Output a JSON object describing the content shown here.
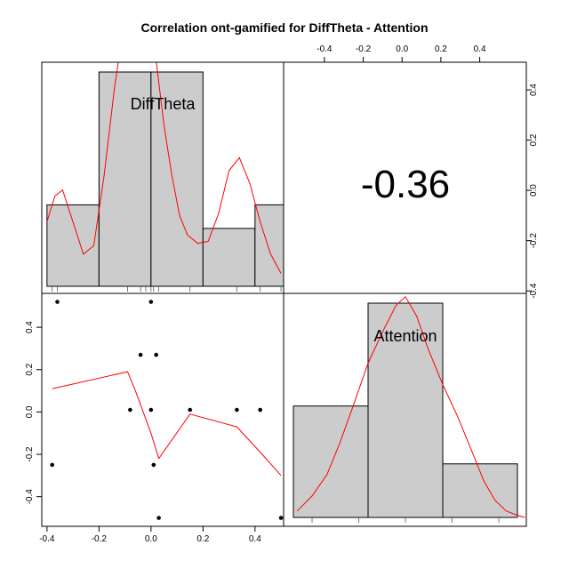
{
  "chart_data": {
    "type": "pairs",
    "title": "Correlation ont-gamified for DiffTheta - Attention",
    "variables": [
      "DiffTheta",
      "Attention"
    ],
    "colors": {
      "bar_fill": "#cccccc",
      "smooth_line": "#ff0000",
      "points": "#000000"
    },
    "diag_histograms": [
      {
        "variable": "DiffTheta",
        "label": "DiffTheta",
        "breaks": [
          -0.4,
          -0.2,
          0.0,
          0.2,
          0.4,
          0.6
        ],
        "densities": [
          0.38,
          1.0,
          1.0,
          0.27,
          0.38
        ],
        "rug": [
          -0.38,
          -0.36,
          -0.09,
          -0.04,
          -0.02,
          0.0,
          0.01,
          0.03,
          0.15,
          0.33,
          0.42,
          0.5
        ],
        "density_curve": {
          "x": [
            -0.4,
            -0.37,
            -0.34,
            -0.3,
            -0.26,
            -0.22,
            -0.18,
            -0.14,
            -0.1,
            -0.06,
            -0.03,
            -0.01,
            0.02,
            0.05,
            0.08,
            0.11,
            0.14,
            0.18,
            0.22,
            0.26,
            0.3,
            0.34,
            0.38,
            0.42,
            0.46,
            0.5
          ],
          "y": [
            0.3,
            0.42,
            0.45,
            0.3,
            0.15,
            0.19,
            0.52,
            0.93,
            1.25,
            1.35,
            1.34,
            1.25,
            1.05,
            0.75,
            0.52,
            0.33,
            0.24,
            0.2,
            0.21,
            0.34,
            0.54,
            0.6,
            0.48,
            0.3,
            0.15,
            0.06
          ]
        }
      },
      {
        "variable": "Attention",
        "label": "Attention",
        "breaks": [
          -0.6,
          -0.2,
          0.2,
          0.6
        ],
        "densities": [
          0.52,
          1.0,
          0.25
        ],
        "rug": [
          -0.5,
          -0.25,
          0.0,
          0.25,
          0.5
        ],
        "density_curve": {
          "x": [
            -0.58,
            -0.5,
            -0.42,
            -0.35,
            -0.28,
            -0.2,
            -0.12,
            -0.05,
            0.0,
            0.06,
            0.12,
            0.2,
            0.28,
            0.36,
            0.42,
            0.48,
            0.54,
            0.6,
            0.64
          ],
          "y": [
            0.03,
            0.1,
            0.2,
            0.35,
            0.52,
            0.72,
            0.87,
            0.99,
            1.03,
            0.94,
            0.79,
            0.62,
            0.47,
            0.3,
            0.17,
            0.08,
            0.03,
            0.01,
            0.0
          ]
        }
      }
    ],
    "upper_correlation": {
      "value": "-0.36"
    },
    "scatter": {
      "x_var": "DiffTheta",
      "y_var": "Attention",
      "x": [
        -0.36,
        -0.0,
        -0.04,
        0.02,
        -0.08,
        0.0,
        0.15,
        0.33,
        0.42,
        -0.38,
        0.01,
        0.03,
        0.5
      ],
      "y": [
        0.52,
        0.52,
        0.27,
        0.27,
        0.01,
        0.01,
        0.01,
        0.01,
        0.01,
        -0.25,
        -0.25,
        -0.5,
        -0.5
      ],
      "smooth": {
        "x": [
          -0.38,
          -0.09,
          -0.06,
          0.0,
          0.03,
          0.15,
          0.33,
          0.42,
          0.5
        ],
        "y": [
          0.11,
          0.19,
          0.1,
          -0.1,
          -0.22,
          -0.01,
          -0.07,
          -0.19,
          -0.3
        ]
      }
    },
    "axes": {
      "bottom": {
        "ticks": [
          -0.4,
          -0.2,
          0.0,
          0.2,
          0.4
        ],
        "labels": [
          "-0.4",
          "-0.2",
          "0.0",
          "0.2",
          "0.4"
        ],
        "range": [
          -0.42,
          0.51
        ]
      },
      "top": {
        "ticks": [
          -0.4,
          -0.2,
          0.0,
          0.2,
          0.4
        ],
        "labels": [
          "-0.4",
          "-0.2",
          "0.0",
          "0.2",
          "0.4"
        ],
        "range": [
          -0.61,
          0.64
        ]
      },
      "left": {
        "ticks": [
          0.4,
          0.2,
          0.0,
          -0.2,
          -0.4
        ],
        "labels": [
          "0.4",
          "0.2",
          "0.0",
          "-0.2",
          "-0.4"
        ],
        "range": [
          -0.54,
          0.56
        ]
      },
      "right": {
        "ticks": [
          0.4,
          0.2,
          0.0,
          -0.2,
          -0.4
        ],
        "labels": [
          "0.4",
          "0.2",
          "0.0",
          "-0.2",
          "-0.4"
        ],
        "range": [
          -0.41,
          0.51
        ]
      }
    }
  }
}
